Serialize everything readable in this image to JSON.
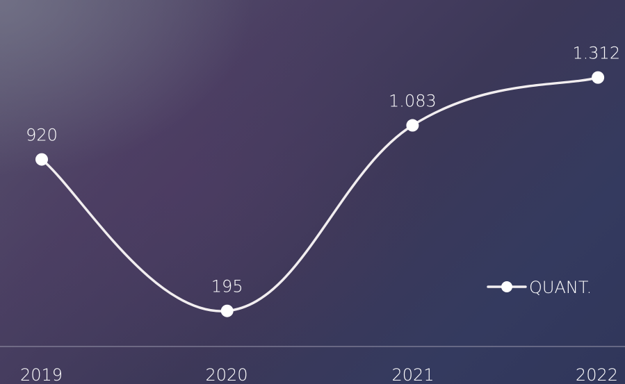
{
  "colors": {
    "line": "#f2eef0",
    "marker": "#ffffff",
    "axis": "#9a98ad",
    "text": "#ffffff"
  },
  "chart_data": {
    "type": "line",
    "categories": [
      "2019",
      "2020",
      "2021",
      "2022"
    ],
    "series": [
      {
        "name": "QUANT.",
        "values": [
          920,
          195,
          1083,
          1312
        ],
        "labels": [
          "920",
          "195",
          "1.083",
          "1.312"
        ]
      }
    ],
    "ylim": [
      -155,
      1683
    ],
    "grid": false,
    "legend_position": "bottom-right",
    "marker": "circle",
    "smooth": true
  }
}
